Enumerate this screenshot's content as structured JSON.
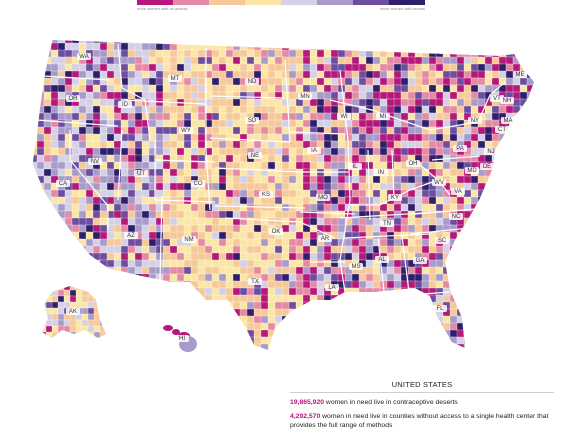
{
  "legend": {
    "colors": [
      "#b5177a",
      "#e58aa5",
      "#f6c99a",
      "#fbe6a8",
      "#d5d0e6",
      "#a89bc9",
      "#6d4e9e",
      "#2f1f6b"
    ],
    "label_left": "more women with no access",
    "label_right": "more women with access"
  },
  "map": {
    "state_labels": [
      "WA",
      "MT",
      "ND",
      "MN",
      "ME",
      "OR",
      "ID",
      "SD",
      "WI",
      "MI",
      "VT",
      "NH",
      "NY",
      "MA",
      "CT",
      "WY",
      "IA",
      "PA",
      "NJ",
      "NV",
      "NE",
      "IL",
      "IN",
      "OH",
      "DE",
      "MD",
      "UT",
      "CO",
      "KS",
      "MO",
      "KY",
      "WV",
      "VA",
      "CA",
      "OK",
      "AR",
      "TN",
      "NC",
      "AZ",
      "NM",
      "SC",
      "MS",
      "AL",
      "GA",
      "TX",
      "LA",
      "FL",
      "AK",
      "HI"
    ]
  },
  "panel": {
    "heading": "UNITED STATES",
    "stat1_number": "19,865,920",
    "stat1_text": " women in need live in contraceptive deserts",
    "stat2_number": "4,292,570",
    "stat2_text": " women in need live in counties without access to a single health center that provides the full range of methods"
  }
}
